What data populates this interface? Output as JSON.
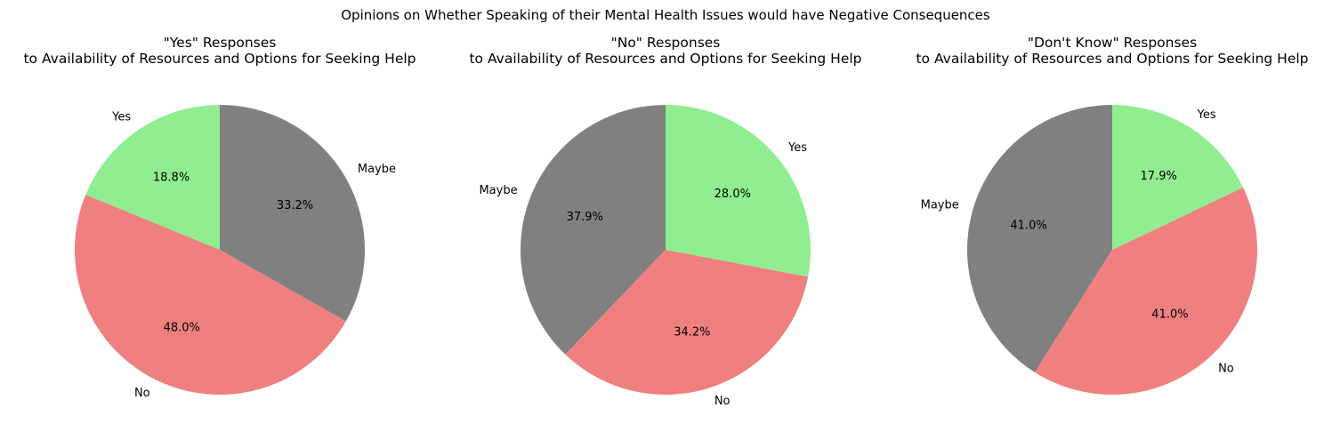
{
  "figure": {
    "suptitle": "Opinions on Whether Speaking of their Mental Health Issues would have Negative Consequences"
  },
  "chart_data": [
    {
      "type": "pie",
      "title_line1": "\"Yes\" Responses",
      "title_line2": "to Availability of Resources and Options for Seeking Help",
      "start_angle_deg": 90,
      "direction": "counterclockwise",
      "slices": [
        {
          "label": "Yes",
          "value": 18.8,
          "pct_text": "18.8%",
          "color": "#90ee90"
        },
        {
          "label": "No",
          "value": 48.0,
          "pct_text": "48.0%",
          "color": "#f08080"
        },
        {
          "label": "Maybe",
          "value": 33.2,
          "pct_text": "33.2%",
          "color": "#808080"
        }
      ]
    },
    {
      "type": "pie",
      "title_line1": "\"No\" Responses",
      "title_line2": "to Availability of Resources and Options for Seeking Help",
      "start_angle_deg": 90,
      "direction": "counterclockwise",
      "slices": [
        {
          "label": "Maybe",
          "value": 37.9,
          "pct_text": "37.9%",
          "color": "#808080"
        },
        {
          "label": "No",
          "value": 34.2,
          "pct_text": "34.2%",
          "color": "#f08080"
        },
        {
          "label": "Yes",
          "value": 28.0,
          "pct_text": "28.0%",
          "color": "#90ee90"
        }
      ]
    },
    {
      "type": "pie",
      "title_line1": "\"Don't Know\" Responses",
      "title_line2": "to Availability of Resources and Options for Seeking Help",
      "start_angle_deg": 90,
      "direction": "counterclockwise",
      "slices": [
        {
          "label": "Maybe",
          "value": 41.0,
          "pct_text": "41.0%",
          "color": "#808080"
        },
        {
          "label": "No",
          "value": 41.0,
          "pct_text": "41.0%",
          "color": "#f08080"
        },
        {
          "label": "Yes",
          "value": 17.9,
          "pct_text": "17.9%",
          "color": "#90ee90"
        }
      ]
    }
  ]
}
